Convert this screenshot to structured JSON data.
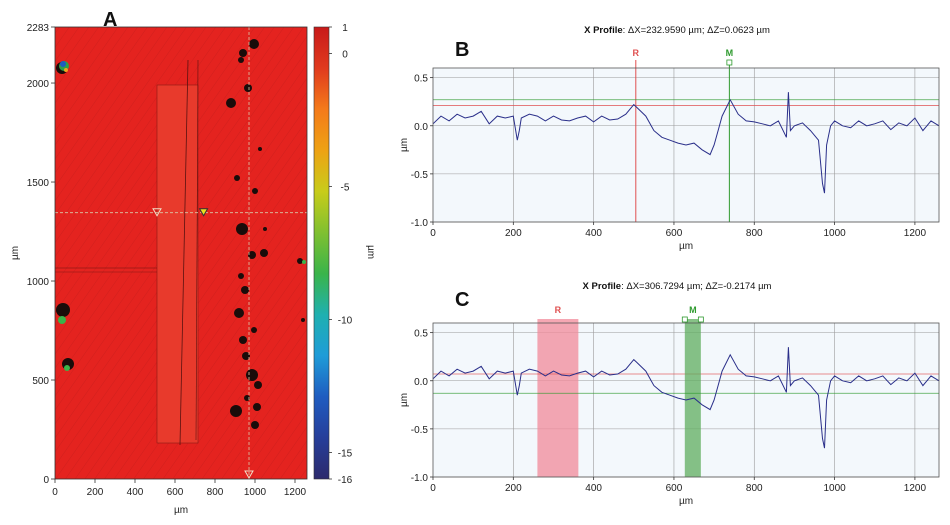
{
  "figure": {
    "panels": [
      "A",
      "B",
      "C"
    ]
  },
  "chart_data": [
    {
      "id": "A",
      "type": "heatmap",
      "xlabel": "µm",
      "ylabel": "µm",
      "xlim": [
        0,
        1260
      ],
      "ylim": [
        0,
        2283
      ],
      "xticks": [
        0,
        200,
        400,
        600,
        800,
        1000,
        1200
      ],
      "yticks": [
        0,
        500,
        1000,
        1500,
        2000,
        2283
      ],
      "colorbar": {
        "label": "µm",
        "ticks": [
          1,
          0,
          -5,
          -10,
          -15,
          -16
        ],
        "range": [
          -16,
          1
        ],
        "colors": [
          "#c81a1a",
          "#e03a1e",
          "#f47a1a",
          "#eea214",
          "#c8cc1a",
          "#80c030",
          "#3ab44a",
          "#1fb0b0",
          "#1f9cd8",
          "#1f5cc0",
          "#263e9a",
          "#2c2a6c"
        ]
      },
      "markers": [
        {
          "label": "R",
          "x": 510,
          "y": 1345
        },
        {
          "label": "M",
          "x": 743,
          "y": 1345
        },
        {
          "label": "",
          "x": 970,
          "y": 0
        }
      ],
      "crosshair": {
        "y": 1345,
        "x": 970
      },
      "colors": {
        "surface": "#e4231f"
      }
    },
    {
      "id": "B",
      "type": "line",
      "title_prefix": "X Profile",
      "title_rest": ": ΔX=232.9590 µm; ΔZ=0.0623 µm",
      "xlabel": "µm",
      "ylabel": "µm",
      "xlim": [
        0,
        1260
      ],
      "ylim": [
        -1.0,
        0.6
      ],
      "xticks": [
        0,
        200,
        400,
        600,
        800,
        1000,
        1200
      ],
      "yticks": [
        0.5,
        0.0,
        -0.5,
        -1.0
      ],
      "ytick_labels": [
        "0.5",
        "0.0",
        "-0.5",
        "-1.0"
      ],
      "grid": true,
      "cursors": [
        {
          "label": "R",
          "x": 505,
          "level": 0.21,
          "color": "#e05050"
        },
        {
          "label": "M",
          "x": 738,
          "level": 0.27,
          "color": "#2e9a2e"
        }
      ],
      "x": [
        0,
        20,
        40,
        60,
        80,
        100,
        120,
        140,
        160,
        180,
        200,
        210,
        215,
        220,
        240,
        260,
        280,
        300,
        320,
        340,
        360,
        380,
        400,
        420,
        440,
        460,
        480,
        500,
        510,
        530,
        550,
        570,
        590,
        610,
        630,
        650,
        670,
        690,
        700,
        710,
        720,
        740,
        760,
        780,
        800,
        820,
        840,
        860,
        880,
        885,
        890,
        900,
        920,
        940,
        960,
        970,
        975,
        980,
        990,
        1000,
        1020,
        1040,
        1060,
        1080,
        1100,
        1120,
        1140,
        1160,
        1180,
        1200,
        1220,
        1240,
        1260
      ],
      "y": [
        0.02,
        0.1,
        0.05,
        0.12,
        0.08,
        0.1,
        0.15,
        0.02,
        0.1,
        0.08,
        0.1,
        -0.15,
        -0.05,
        0.08,
        0.12,
        0.1,
        0.05,
        0.1,
        0.06,
        0.05,
        0.08,
        0.1,
        0.04,
        0.1,
        0.06,
        0.07,
        0.12,
        0.22,
        0.18,
        0.1,
        -0.05,
        -0.12,
        -0.15,
        -0.18,
        -0.2,
        -0.18,
        -0.25,
        -0.3,
        -0.2,
        -0.05,
        0.1,
        0.27,
        0.12,
        0.05,
        0.04,
        0.02,
        0.0,
        0.05,
        -0.12,
        0.35,
        -0.05,
        0.0,
        0.03,
        -0.05,
        -0.15,
        -0.6,
        -0.7,
        -0.2,
        0.0,
        0.05,
        0.0,
        -0.02,
        0.05,
        0.0,
        0.02,
        0.05,
        -0.04,
        0.03,
        0.0,
        0.08,
        -0.05,
        0.05,
        0.0
      ]
    },
    {
      "id": "C",
      "type": "line",
      "title_prefix": "X Profile",
      "title_rest": ": ΔX=306.7294 µm; ΔZ=-0.2174 µm",
      "xlabel": "µm",
      "ylabel": "µm",
      "xlim": [
        0,
        1260
      ],
      "ylim": [
        -1.0,
        0.6
      ],
      "xticks": [
        0,
        200,
        400,
        600,
        800,
        1000,
        1200
      ],
      "yticks": [
        0.5,
        0.0,
        -0.5,
        -1.0
      ],
      "ytick_labels": [
        "0.5",
        "0.0",
        "-0.5",
        "-1.0"
      ],
      "grid": true,
      "cursors": [
        {
          "label": "R",
          "x0": 260,
          "x1": 362,
          "level": 0.07,
          "color": "#e05050",
          "fill": "#f28a9a"
        },
        {
          "label": "M",
          "x0": 627,
          "x1": 667,
          "level": -0.13,
          "color": "#2e9a2e",
          "fill": "#5fae5f"
        }
      ],
      "x": [
        0,
        20,
        40,
        60,
        80,
        100,
        120,
        140,
        160,
        180,
        200,
        210,
        215,
        220,
        240,
        260,
        280,
        300,
        320,
        340,
        360,
        380,
        400,
        420,
        440,
        460,
        480,
        500,
        510,
        530,
        550,
        570,
        590,
        610,
        630,
        650,
        670,
        690,
        700,
        710,
        720,
        740,
        760,
        780,
        800,
        820,
        840,
        860,
        880,
        885,
        890,
        900,
        920,
        940,
        960,
        970,
        975,
        980,
        990,
        1000,
        1020,
        1040,
        1060,
        1080,
        1100,
        1120,
        1140,
        1160,
        1180,
        1200,
        1220,
        1240,
        1260
      ],
      "y": [
        0.02,
        0.1,
        0.05,
        0.12,
        0.08,
        0.1,
        0.15,
        0.02,
        0.1,
        0.08,
        0.1,
        -0.15,
        -0.05,
        0.08,
        0.12,
        0.1,
        0.05,
        0.1,
        0.06,
        0.05,
        0.08,
        0.1,
        0.04,
        0.1,
        0.06,
        0.07,
        0.12,
        0.22,
        0.18,
        0.1,
        -0.05,
        -0.12,
        -0.15,
        -0.18,
        -0.2,
        -0.18,
        -0.25,
        -0.3,
        -0.2,
        -0.05,
        0.1,
        0.27,
        0.12,
        0.05,
        0.04,
        0.02,
        0.0,
        0.05,
        -0.12,
        0.35,
        -0.05,
        0.0,
        0.03,
        -0.05,
        -0.15,
        -0.6,
        -0.7,
        -0.2,
        0.0,
        0.05,
        0.0,
        -0.02,
        0.05,
        0.0,
        0.02,
        0.05,
        -0.04,
        0.03,
        0.0,
        0.08,
        -0.05,
        0.05,
        0.0
      ]
    }
  ]
}
